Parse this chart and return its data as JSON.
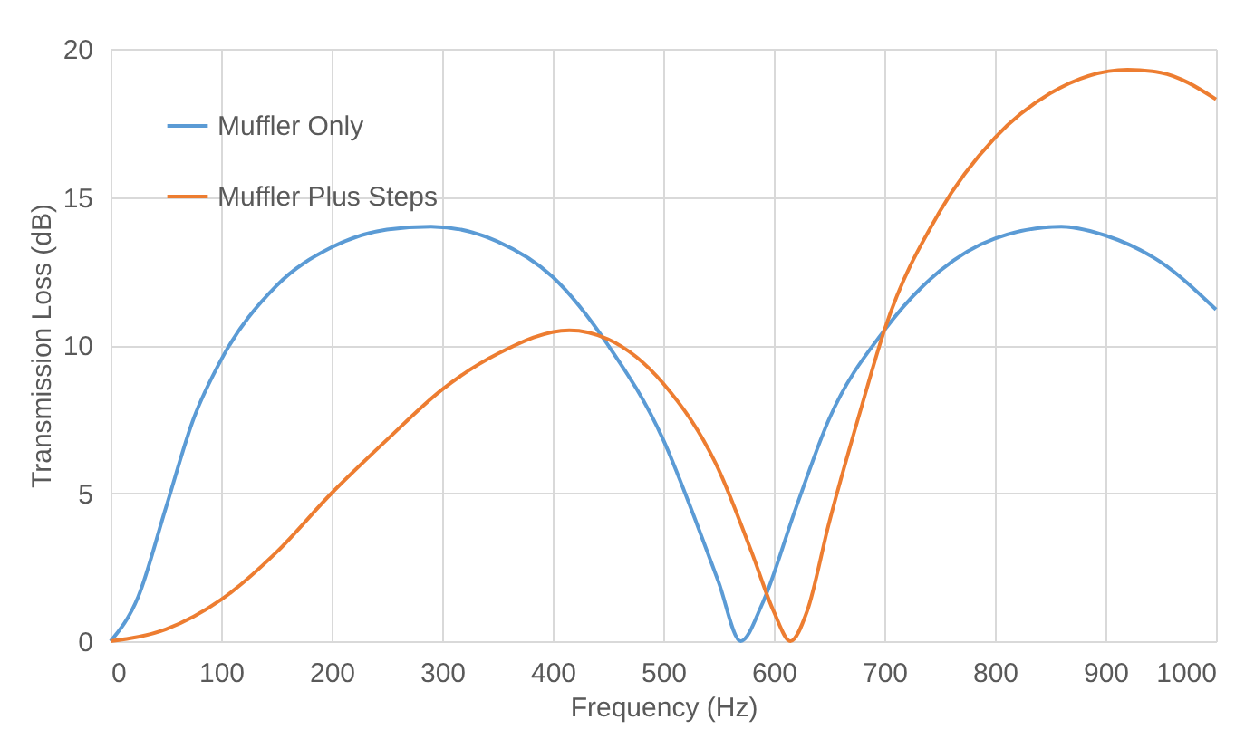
{
  "chart_data": {
    "type": "line",
    "xlabel": "Frequency (Hz)",
    "ylabel": "Transmission Loss (dB)",
    "xlim": [
      0,
      1000
    ],
    "xticks": [
      0,
      100,
      200,
      300,
      400,
      500,
      600,
      700,
      800,
      900,
      1000
    ],
    "ylim": [
      0,
      20
    ],
    "yticks": [
      0,
      5,
      10,
      15,
      20
    ],
    "grid": true,
    "legend": "top left",
    "marker": "none",
    "line_style": "solid",
    "series": [
      {
        "name": "Muffler Only",
        "color": "#5b9bd5",
        "x": [
          0,
          25,
          50,
          75,
          100,
          150,
          200,
          250,
          290,
          350,
          400,
          450,
          500,
          530,
          550,
          570,
          590,
          620,
          650,
          700,
          750,
          800,
          860,
          900,
          950,
          1000
        ],
        "values": [
          0,
          1.5,
          4.5,
          7.5,
          9.5,
          12,
          13.3,
          13.9,
          14,
          13.5,
          12.3,
          10,
          6.8,
          4,
          2,
          0,
          1.3,
          4.5,
          7.5,
          10.5,
          12.5,
          13.6,
          14,
          13.7,
          12.8,
          11.2
        ]
      },
      {
        "name": "Muffler Plus Steps",
        "color": "#ed7d31",
        "x": [
          0,
          50,
          100,
          150,
          200,
          250,
          300,
          350,
          415,
          450,
          500,
          550,
          580,
          600,
          615,
          630,
          650,
          680,
          700,
          750,
          800,
          850,
          920,
          950,
          1000
        ],
        "values": [
          0,
          0.4,
          1.4,
          3,
          5,
          6.8,
          8.5,
          9.7,
          10.5,
          10.2,
          8.7,
          5.8,
          3,
          1,
          0,
          1,
          4,
          8,
          10.5,
          14.5,
          17,
          18.5,
          19.3,
          19.2,
          18.3
        ]
      }
    ]
  }
}
